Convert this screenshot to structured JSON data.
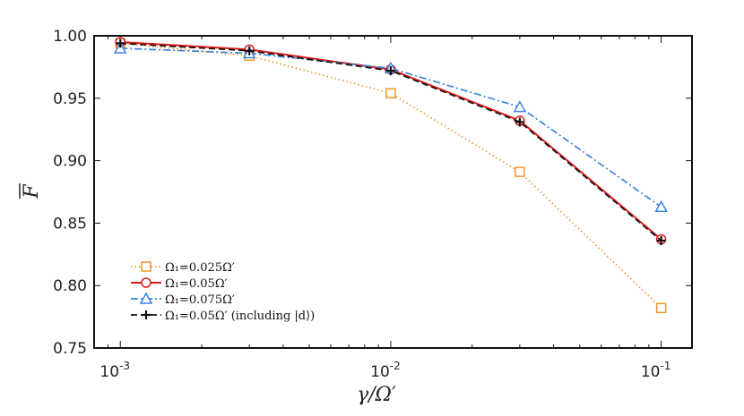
{
  "chart_data": {
    "type": "line",
    "title": "",
    "xlabel": "γ/Ω′",
    "ylabel": "F",
    "xscale": "log",
    "xlim": [
      0.0008,
      0.13
    ],
    "ylim": [
      0.75,
      1.0
    ],
    "x": [
      0.001,
      0.003,
      0.01,
      0.03,
      0.1
    ],
    "x_tick_values": [
      0.001,
      0.01,
      0.1
    ],
    "x_tick_labels": [
      {
        "base": "10",
        "exp": "-3"
      },
      {
        "base": "10",
        "exp": "-2"
      },
      {
        "base": "10",
        "exp": "-1"
      }
    ],
    "y_ticks": [
      0.75,
      0.8,
      0.85,
      0.9,
      0.95,
      1.0
    ],
    "y_tick_labels": [
      "0.75",
      "0.80",
      "0.85",
      "0.90",
      "0.95",
      "1.00"
    ],
    "legend_position": "bottom-left",
    "series": [
      {
        "name": "Ω₁=0.025Ω′",
        "color": "#F0962A",
        "dash": "dotted",
        "marker": "square",
        "values": [
          0.994,
          0.984,
          0.954,
          0.891,
          0.782
        ]
      },
      {
        "name": "Ω₁=0.05Ω′",
        "color": "#E01A1A",
        "dash": "solid",
        "marker": "circle",
        "values": [
          0.995,
          0.989,
          0.973,
          0.932,
          0.837
        ]
      },
      {
        "name": "Ω₁=0.075Ω′",
        "color": "#3C84E0",
        "dash": "dashdot",
        "marker": "triangle",
        "values": [
          0.99,
          0.986,
          0.974,
          0.943,
          0.863
        ]
      },
      {
        "name": "Ω₁=0.05Ω′ (including |d⟩)",
        "color": "#111111",
        "dash": "dashed",
        "marker": "plus",
        "values": [
          0.994,
          0.988,
          0.972,
          0.931,
          0.836
        ]
      }
    ]
  }
}
